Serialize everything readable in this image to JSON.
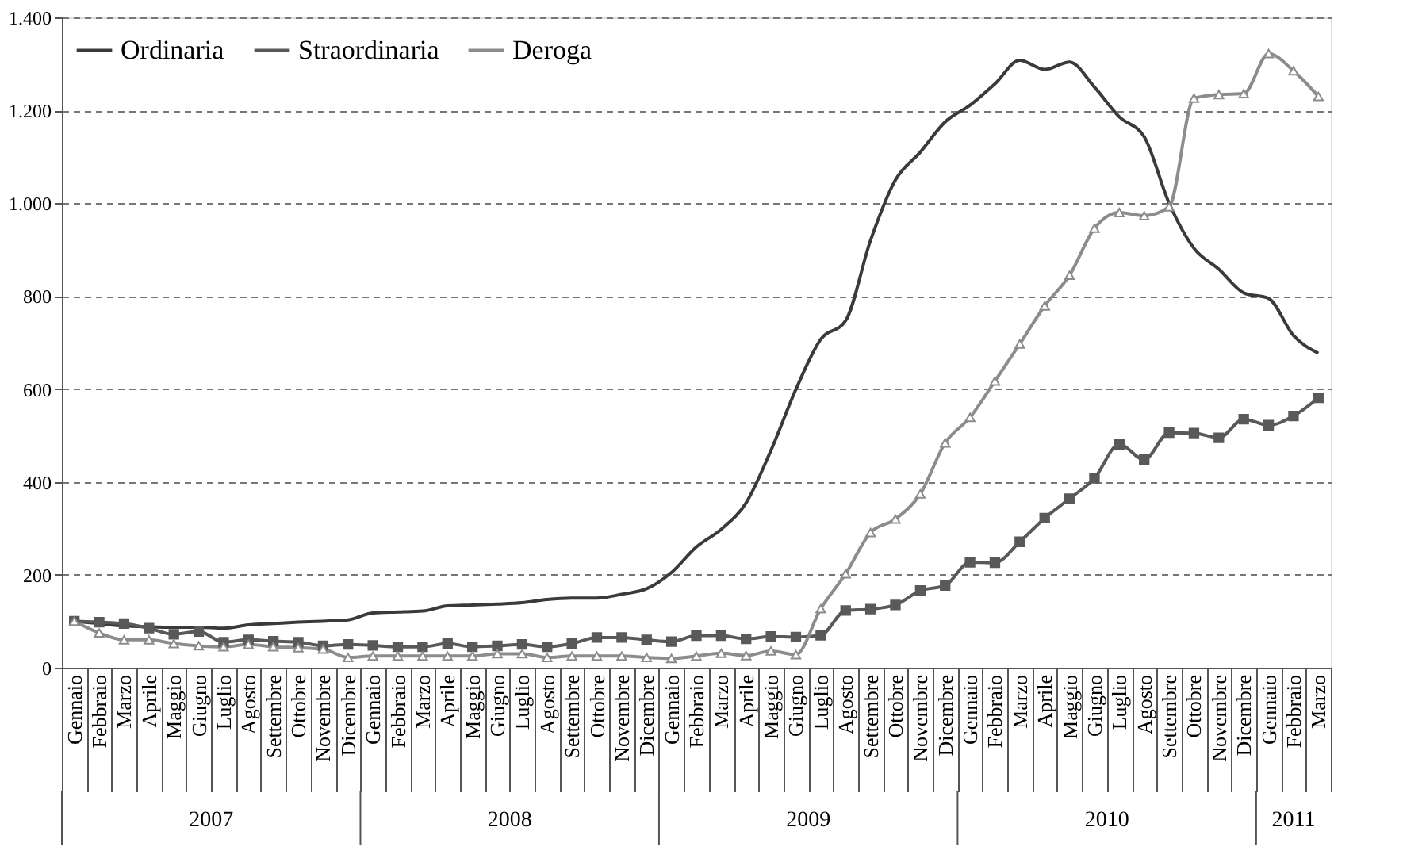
{
  "chart_data": {
    "type": "line",
    "categories": [
      "Gennaio",
      "Febbraio",
      "Marzo",
      "Aprile",
      "Maggio",
      "Giugno",
      "Luglio",
      "Agosto",
      "Settembre",
      "Ottobre",
      "Novembre",
      "Dicembre",
      "Gennaio",
      "Febbraio",
      "Marzo",
      "Aprile",
      "Maggio",
      "Giugno",
      "Luglio",
      "Agosto",
      "Settembre",
      "Ottobre",
      "Novembre",
      "Dicembre",
      "Gennaio",
      "Febbraio",
      "Marzo",
      "Aprile",
      "Maggio",
      "Giugno",
      "Luglio",
      "Agosto",
      "Settembre",
      "Ottobre",
      "Novembre",
      "Dicembre",
      "Gennaio",
      "Febbraio",
      "Marzo",
      "Aprile",
      "Maggio",
      "Giugno",
      "Luglio",
      "Agosto",
      "Settembre",
      "Ottobre",
      "Novembre",
      "Dicembre",
      "Gennaio",
      "Febbraio",
      "Marzo"
    ],
    "series": [
      {
        "name": "Ordinaria",
        "color": "#3a3a3a",
        "marker": "none",
        "values": [
          100,
          95,
          90,
          88,
          87,
          87,
          85,
          92,
          95,
          98,
          100,
          103,
          118,
          120,
          122,
          133,
          135,
          137,
          140,
          147,
          150,
          150,
          158,
          170,
          205,
          260,
          298,
          355,
          468,
          599,
          707,
          747,
          920,
          1050,
          1110,
          1175,
          1211,
          1257,
          1308,
          1288,
          1304,
          1250,
          1186,
          1143,
          1000,
          903,
          858,
          807,
          795,
          715,
          677
        ]
      },
      {
        "name": "Straordinaria",
        "color": "#595959",
        "marker": "square",
        "values": [
          100,
          98,
          95,
          85,
          72,
          78,
          55,
          60,
          57,
          55,
          47,
          50,
          48,
          45,
          45,
          52,
          45,
          47,
          50,
          45,
          52,
          65,
          65,
          60,
          56,
          69,
          69,
          62,
          67,
          66,
          70,
          123,
          126,
          135,
          166,
          177,
          227,
          226,
          271,
          322,
          364,
          408,
          481,
          448,
          506,
          505,
          495,
          535,
          522,
          542,
          581
        ]
      },
      {
        "name": "Deroga",
        "color": "#8c8c8c",
        "marker": "triangle",
        "values": [
          100,
          75,
          60,
          60,
          52,
          47,
          45,
          50,
          45,
          43,
          40,
          22,
          25,
          25,
          25,
          25,
          25,
          30,
          30,
          22,
          25,
          25,
          25,
          22,
          20,
          25,
          31,
          26,
          36,
          28,
          127,
          202,
          291,
          320,
          374,
          484,
          539,
          617,
          697,
          779,
          845,
          946,
          980,
          973,
          992,
          1226,
          1234,
          1236,
          1322,
          1285,
          1230
        ]
      }
    ],
    "ylim": [
      0,
      1400
    ],
    "yticks": [
      0,
      200,
      400,
      600,
      800,
      {
        "value": 1000,
        "label": "1.000"
      },
      {
        "value": 1200,
        "label": "1.200"
      },
      {
        "value": 1400,
        "label": "1.400"
      }
    ],
    "grid": "y",
    "legend": "top left",
    "annotations": [
      "2007",
      "2008",
      "2009",
      "2010",
      "2011"
    ]
  }
}
